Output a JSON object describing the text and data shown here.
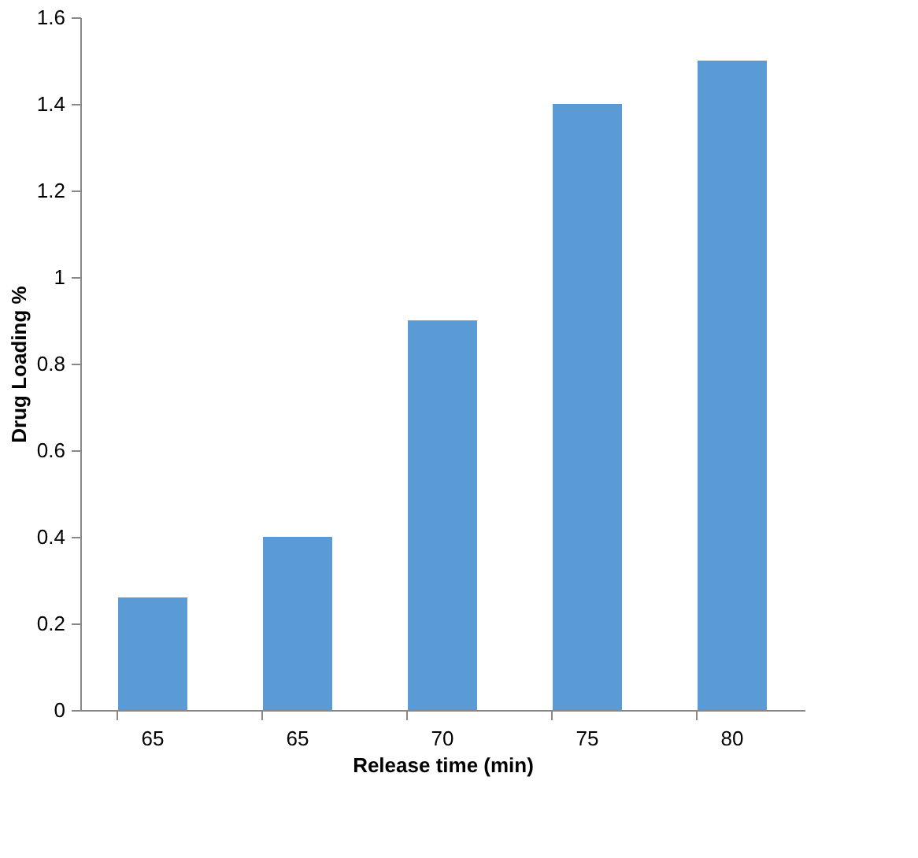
{
  "chart_data": {
    "type": "bar",
    "categories": [
      "65",
      "65",
      "70",
      "75",
      "80"
    ],
    "values": [
      0.26,
      0.4,
      0.9,
      1.4,
      1.5
    ],
    "color": "#5b9bd5",
    "xlabel": "Release time (min)",
    "ylabel": "Drug Loading %",
    "ylim": [
      0,
      1.6
    ],
    "yticks": [
      0,
      0.2,
      0.4,
      0.6,
      0.8,
      1,
      1.2,
      1.4,
      1.6
    ],
    "grid": false
  }
}
